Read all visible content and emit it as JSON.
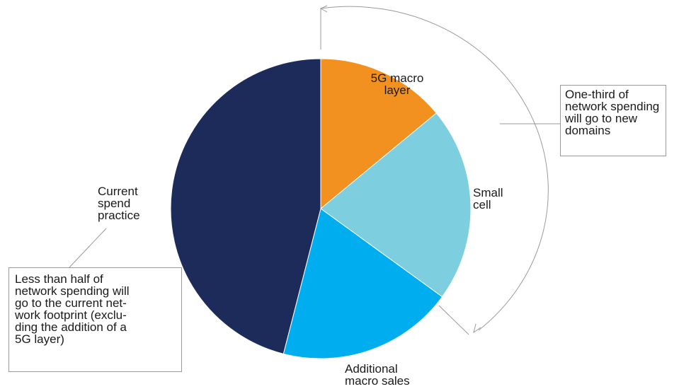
{
  "chart_data": {
    "type": "pie",
    "title": "",
    "start_angle_deg": 0,
    "direction": "clockwise",
    "slices": [
      {
        "name": "5G macro layer",
        "label_lines": [
          "5G macro",
          "layer"
        ],
        "value": 14,
        "color": "#F29120"
      },
      {
        "name": "Small cell",
        "label_lines": [
          "Small",
          "cell"
        ],
        "value": 21,
        "color": "#7DCFE0"
      },
      {
        "name": "Additional macro sales",
        "label_lines": [
          "Additional",
          "macro sales"
        ],
        "value": 19,
        "color": "#00AEEF"
      },
      {
        "name": "Current spend practice",
        "label_lines": [
          "Current",
          "spend",
          "practice"
        ],
        "value": 46,
        "color": "#1C2B5A"
      }
    ],
    "annotations": [
      {
        "id": "new-domains",
        "lines": [
          "One-third of",
          "network spending",
          "will go to new",
          "domains"
        ]
      },
      {
        "id": "current-footprint",
        "lines": [
          "Less than half of",
          "network spending will",
          "go to the current net-",
          "work footprint (exclu-",
          "ding the addition of a",
          "5G layer)"
        ]
      }
    ]
  }
}
